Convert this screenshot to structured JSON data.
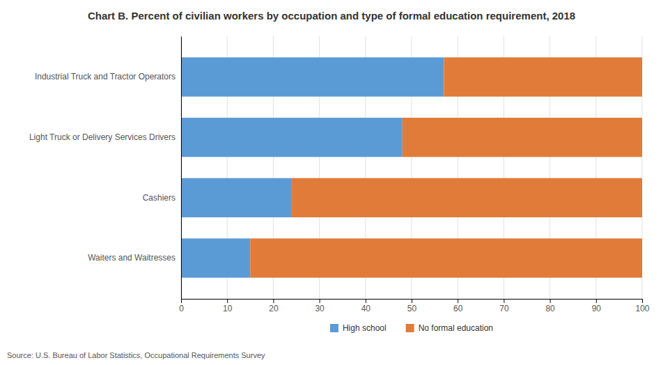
{
  "chart_data": {
    "type": "bar",
    "orientation": "horizontal",
    "stacked": true,
    "title": "Chart B. Percent of civilian workers by occupation and type of formal education requirement, 2018",
    "categories": [
      "Industrial Truck and Tractor Operators",
      "Light Truck or Delivery Services Drivers",
      "Cashiers",
      "Waiters and Waitresses"
    ],
    "series": [
      {
        "name": "High school",
        "color": "#5b9bd5",
        "values": [
          57,
          48,
          24,
          15
        ]
      },
      {
        "name": "No formal education",
        "color": "#e07b39",
        "values": [
          43,
          52,
          76,
          85
        ]
      }
    ],
    "xlim": [
      0,
      100
    ],
    "xticks": [
      0,
      10,
      20,
      30,
      40,
      50,
      60,
      70,
      80,
      90,
      100
    ],
    "grid": true,
    "legend": "bottom",
    "annotations": [
      "Source: U.S. Bureau of Labor Statistics, Occupational Requirements Survey"
    ]
  }
}
